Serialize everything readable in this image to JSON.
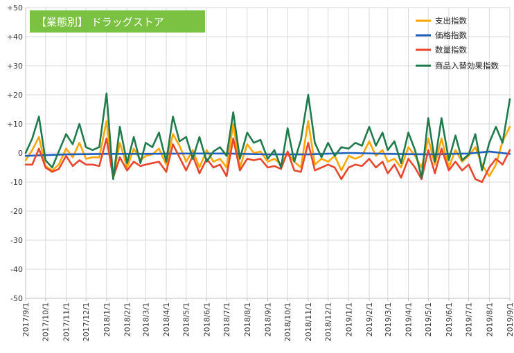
{
  "chart_data": {
    "type": "line",
    "title": "【業態別】 ドラッグストア",
    "xlabel": "",
    "ylabel": "",
    "ylim": [
      -50,
      50
    ],
    "y_ticks": [
      "+50",
      "+40",
      "+30",
      "+20",
      "+10",
      "0",
      "-10",
      "-20",
      "-30",
      "-40",
      "-50"
    ],
    "x_start": "2017/9/1",
    "x_end": "2019/9/1",
    "x_ticks": [
      "2017/9/1",
      "2017/10/1",
      "2017/11/1",
      "2017/12/1",
      "2018/1/1",
      "2018/2/1",
      "2018/3/1",
      "2018/4/1",
      "2018/5/1",
      "2018/6/1",
      "2018/7/1",
      "2018/8/1",
      "2018/9/1",
      "2018/10/1",
      "2018/11/1",
      "2018/12/1",
      "2019/1/1",
      "2019/2/1",
      "2019/3/1",
      "2019/4/1",
      "2019/5/1",
      "2019/6/1",
      "2019/7/1",
      "2019/8/1",
      "2019/9/1"
    ],
    "grid": true,
    "legend_position": "top-right",
    "series": [
      {
        "name": "支出指数",
        "color": "#FFA500",
        "x": [
          "2017/9/1",
          "2017/9/11",
          "2017/9/21",
          "2017/10/1",
          "2017/10/11",
          "2017/10/21",
          "2017/11/1",
          "2017/11/11",
          "2017/11/21",
          "2017/12/1",
          "2017/12/11",
          "2017/12/21",
          "2018/1/1",
          "2018/1/11",
          "2018/1/21",
          "2018/2/1",
          "2018/2/11",
          "2018/2/21",
          "2018/3/1",
          "2018/3/11",
          "2018/3/21",
          "2018/4/1",
          "2018/4/11",
          "2018/4/21",
          "2018/5/1",
          "2018/5/11",
          "2018/5/21",
          "2018/6/1",
          "2018/6/11",
          "2018/6/21",
          "2018/7/1",
          "2018/7/11",
          "2018/7/21",
          "2018/8/1",
          "2018/8/11",
          "2018/8/21",
          "2018/9/1",
          "2018/9/11",
          "2018/9/21",
          "2018/10/1",
          "2018/10/11",
          "2018/10/21",
          "2018/11/1",
          "2018/11/11",
          "2018/11/21",
          "2018/12/1",
          "2018/12/11",
          "2018/12/21",
          "2019/1/1",
          "2019/1/11",
          "2019/1/21",
          "2019/2/1",
          "2019/2/11",
          "2019/2/21",
          "2019/3/1",
          "2019/3/11",
          "2019/3/21",
          "2019/4/1",
          "2019/4/11",
          "2019/4/21",
          "2019/5/1",
          "2019/5/11",
          "2019/5/21",
          "2019/6/1",
          "2019/6/11",
          "2019/6/21",
          "2019/7/1",
          "2019/7/11",
          "2019/7/21",
          "2019/8/1",
          "2019/8/11",
          "2019/8/21",
          "2019/9/1"
        ],
        "values": [
          -2.5,
          1,
          5.5,
          -4.5,
          -6,
          -4,
          1.5,
          -1.5,
          3.5,
          -2,
          -1.5,
          -1.5,
          11,
          -8,
          3.5,
          -5,
          1.5,
          -2.5,
          -1,
          -0.5,
          1.5,
          -4,
          6.5,
          2.5,
          -3,
          1,
          -5,
          1,
          -3,
          -2,
          -5,
          10,
          -5,
          3,
          0,
          0.5,
          -3,
          -2,
          -4,
          0,
          -3,
          -5,
          11,
          -4,
          -2,
          -3,
          -1,
          -6,
          -1,
          -2,
          -1,
          4,
          -1,
          1,
          -3,
          -2,
          -5,
          2,
          -1,
          -5,
          5,
          -4,
          5,
          -5,
          1,
          -3,
          -1,
          2,
          -4,
          -8,
          -4,
          4,
          9
        ]
      },
      {
        "name": "価格指数",
        "color": "#1F5FBF",
        "x": [
          "2017/9/1",
          "2017/11/1",
          "2018/1/1",
          "2018/3/1",
          "2018/5/1",
          "2018/7/1",
          "2018/9/1",
          "2018/11/1",
          "2019/1/1",
          "2019/3/1",
          "2019/5/1",
          "2019/7/1",
          "2019/8/1",
          "2019/9/1"
        ],
        "values": [
          -1,
          -0.5,
          -0.3,
          -0.3,
          -0.2,
          -0.2,
          -0.5,
          -0.5,
          0,
          -0.3,
          -0.5,
          -0.2,
          0.5,
          -0.3
        ]
      },
      {
        "name": "数量指数",
        "color": "#E8472D",
        "x": [
          "2017/9/1",
          "2017/9/11",
          "2017/9/21",
          "2017/10/1",
          "2017/10/11",
          "2017/10/21",
          "2017/11/1",
          "2017/11/11",
          "2017/11/21",
          "2017/12/1",
          "2017/12/11",
          "2017/12/21",
          "2018/1/1",
          "2018/1/11",
          "2018/1/21",
          "2018/2/1",
          "2018/2/11",
          "2018/2/21",
          "2018/3/1",
          "2018/3/11",
          "2018/3/21",
          "2018/4/1",
          "2018/4/11",
          "2018/4/21",
          "2018/5/1",
          "2018/5/11",
          "2018/5/21",
          "2018/6/1",
          "2018/6/11",
          "2018/6/21",
          "2018/7/1",
          "2018/7/11",
          "2018/7/21",
          "2018/8/1",
          "2018/8/11",
          "2018/8/21",
          "2018/9/1",
          "2018/9/11",
          "2018/9/21",
          "2018/10/1",
          "2018/10/11",
          "2018/10/21",
          "2018/11/1",
          "2018/11/11",
          "2018/11/21",
          "2018/12/1",
          "2018/12/11",
          "2018/12/21",
          "2019/1/1",
          "2019/1/11",
          "2019/1/21",
          "2019/2/1",
          "2019/2/11",
          "2019/2/21",
          "2019/3/1",
          "2019/3/11",
          "2019/3/21",
          "2019/4/1",
          "2019/4/11",
          "2019/4/21",
          "2019/5/1",
          "2019/5/11",
          "2019/5/21",
          "2019/6/1",
          "2019/6/11",
          "2019/6/21",
          "2019/7/1",
          "2019/7/11",
          "2019/7/21",
          "2019/8/1",
          "2019/8/11",
          "2019/8/21",
          "2019/9/1"
        ],
        "values": [
          -4,
          -4,
          1.5,
          -5,
          -6.5,
          -5.5,
          -1,
          -4.5,
          -2.5,
          -4,
          -4,
          -4.5,
          5,
          -8.5,
          -1.5,
          -6,
          -3,
          -4.5,
          -4,
          -3.5,
          -3,
          -6.5,
          3,
          -1.5,
          -6,
          -1,
          -7,
          -2,
          -5,
          -4,
          -8,
          5,
          -6,
          -2,
          -2.5,
          -2,
          -5,
          -4.5,
          -5.5,
          0.5,
          -6,
          -6.5,
          3.5,
          -6,
          -5,
          -4,
          -5,
          -9,
          -5,
          -4,
          -4.5,
          -2,
          -5,
          -3,
          -7,
          -4,
          -8.5,
          -2,
          -5,
          -9,
          1,
          -7,
          1.5,
          -6,
          -3,
          -6,
          -4,
          -9,
          -10,
          -5,
          -2,
          -4,
          1
        ]
      },
      {
        "name": "商品入替効果指数",
        "color": "#1F7A4C",
        "x": [
          "2017/9/1",
          "2017/9/11",
          "2017/9/21",
          "2017/10/1",
          "2017/10/11",
          "2017/10/21",
          "2017/11/1",
          "2017/11/11",
          "2017/11/21",
          "2017/12/1",
          "2017/12/11",
          "2017/12/21",
          "2018/1/1",
          "2018/1/11",
          "2018/1/21",
          "2018/2/1",
          "2018/2/11",
          "2018/2/21",
          "2018/3/1",
          "2018/3/11",
          "2018/3/21",
          "2018/4/1",
          "2018/4/11",
          "2018/4/21",
          "2018/5/1",
          "2018/5/11",
          "2018/5/21",
          "2018/6/1",
          "2018/6/11",
          "2018/6/21",
          "2018/7/1",
          "2018/7/11",
          "2018/7/21",
          "2018/8/1",
          "2018/8/11",
          "2018/8/21",
          "2018/9/1",
          "2018/9/11",
          "2018/9/21",
          "2018/10/1",
          "2018/10/11",
          "2018/10/21",
          "2018/11/1",
          "2018/11/11",
          "2018/11/21",
          "2018/12/1",
          "2018/12/11",
          "2018/12/21",
          "2019/1/1",
          "2019/1/11",
          "2019/1/21",
          "2019/2/1",
          "2019/2/11",
          "2019/2/21",
          "2019/3/1",
          "2019/3/11",
          "2019/3/21",
          "2019/4/1",
          "2019/4/11",
          "2019/4/21",
          "2019/5/1",
          "2019/5/11",
          "2019/5/21",
          "2019/6/1",
          "2019/6/11",
          "2019/6/21",
          "2019/7/1",
          "2019/7/11",
          "2019/7/21",
          "2019/8/1",
          "2019/8/11",
          "2019/8/21",
          "2019/9/1"
        ],
        "values": [
          0,
          5,
          12.5,
          -2.5,
          -5,
          0.5,
          6.5,
          3,
          10,
          2,
          1,
          2,
          20.5,
          -9,
          9,
          -3.5,
          5.5,
          -3.5,
          3.5,
          2,
          7,
          -3,
          12.5,
          4,
          5.5,
          -2,
          5.5,
          -3,
          0.5,
          2,
          -1,
          14,
          -2,
          7,
          3.5,
          4.5,
          -2,
          1,
          -5,
          8.5,
          -3,
          4.5,
          20,
          3.5,
          -1.5,
          3.5,
          -1,
          2,
          1.5,
          3.5,
          2.5,
          9,
          2.5,
          7,
          1,
          4,
          -3.5,
          7,
          1,
          -8.5,
          12,
          -3,
          12,
          -2.5,
          6,
          -2.5,
          -0.5,
          6.5,
          -6,
          3.5,
          9,
          3.5,
          18.5
        ]
      }
    ]
  }
}
